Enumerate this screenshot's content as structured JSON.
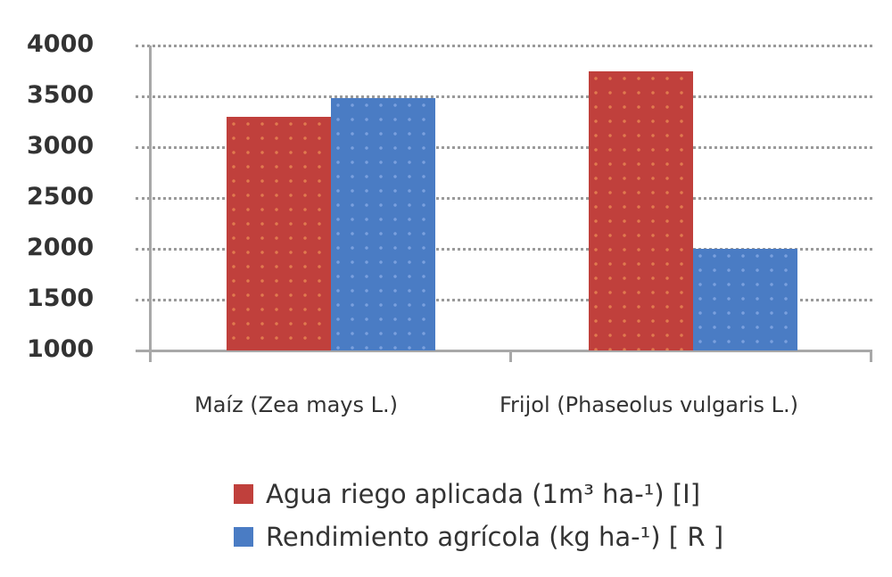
{
  "chart_data": {
    "type": "bar",
    "title": "",
    "xlabel": "",
    "ylabel": "",
    "ylim": [
      1000,
      4000
    ],
    "yticks": [
      "4000",
      "3500",
      "3000",
      "2500",
      "2000",
      "1500",
      "1000"
    ],
    "grid": true,
    "legend_position": "bottom",
    "categories": [
      "Maíz (Zea mays  L.)",
      "Frijol (Phaseolus  vulgaris L.)"
    ],
    "series": [
      {
        "name": "Agua riego aplicada (1m³ ha-¹)  [I]",
        "color": "#c0403c",
        "values": [
          3300,
          3750
        ]
      },
      {
        "name": "Rendimiento agrícola (kg ha-¹) [ R ]",
        "color": "#4a7cc4",
        "values": [
          3480,
          2000
        ]
      }
    ]
  },
  "legend": {
    "items": [
      {
        "label": "Agua riego aplicada (1m³ ha-¹)  [I]",
        "color": "red"
      },
      {
        "label": "Rendimiento agrícola (kg ha-¹) [ R ]",
        "color": "blue"
      }
    ]
  }
}
